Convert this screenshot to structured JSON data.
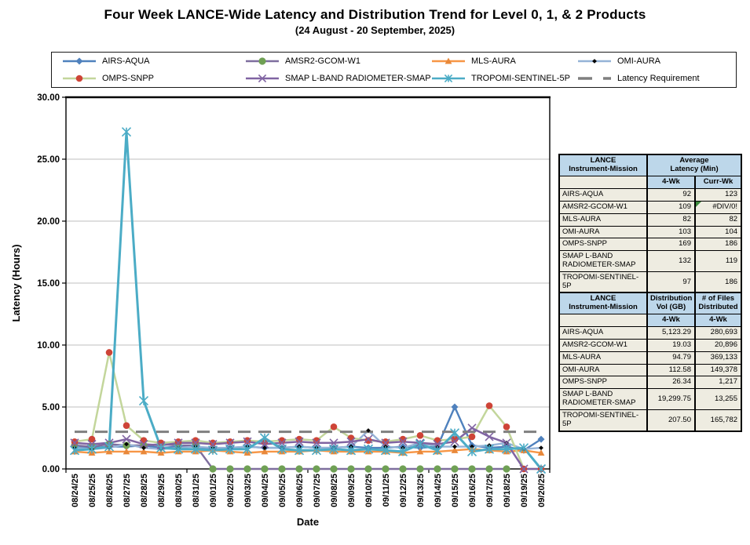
{
  "title": "Four Week LANCE-Wide Latency and Distribution Trend for Level 0, 1, & 2 Products",
  "subtitle": "(24 August   - 20 September,  2025)",
  "chart_data": {
    "type": "line",
    "xlabel": "Date",
    "ylabel": "Latency (Hours)",
    "ylim": [
      0,
      30
    ],
    "ytick_step": 5,
    "ytick_labels": [
      "0.00",
      "5.00",
      "10.00",
      "15.00",
      "20.00",
      "25.00",
      "30.00"
    ],
    "grid": true,
    "legend_position": "top",
    "x": [
      "08/24/25",
      "08/25/25",
      "08/26/25",
      "08/27/25",
      "08/28/25",
      "08/29/25",
      "08/30/25",
      "08/31/25",
      "09/01/25",
      "09/02/25",
      "09/03/25",
      "09/04/25",
      "09/05/25",
      "09/06/25",
      "09/07/25",
      "09/08/25",
      "09/09/25",
      "09/10/25",
      "09/11/25",
      "09/12/25",
      "09/13/25",
      "09/14/25",
      "09/15/25",
      "09/16/25",
      "09/17/25",
      "09/18/25",
      "09/19/25",
      "09/20/25"
    ],
    "series": [
      {
        "name": "AIRS-AQUA",
        "color": "#4F81BD",
        "marker": "diamond",
        "marker_color": "#4F81BD",
        "marker_size": 4.5,
        "line_width": 2.4,
        "values": [
          1.8,
          1.7,
          1.8,
          1.8,
          1.9,
          1.7,
          1.8,
          1.8,
          1.6,
          1.7,
          1.8,
          1.7,
          1.7,
          1.8,
          1.7,
          1.7,
          1.8,
          1.7,
          1.7,
          1.8,
          1.7,
          1.8,
          5.0,
          1.9,
          1.7,
          1.8,
          1.5,
          2.4
        ]
      },
      {
        "name": "AMSR2-GCOM-W1",
        "color": "#7E6E9E",
        "marker": "circle",
        "marker_color": "#6FA054",
        "marker_size": 4.6,
        "line_width": 2.4,
        "values": [
          1.9,
          1.8,
          2.0,
          1.9,
          1.9,
          2.0,
          1.9,
          1.9,
          0,
          0,
          0,
          0,
          0,
          0,
          0,
          0,
          0,
          0,
          0,
          0,
          0,
          0,
          0,
          0,
          0,
          0,
          null,
          null
        ]
      },
      {
        "name": "MLS-AURA",
        "color": "#F79646",
        "marker": "triangle",
        "marker_color": "#E8883A",
        "marker_size": 4.4,
        "line_width": 2.4,
        "values": [
          1.4,
          1.3,
          1.4,
          1.4,
          1.4,
          1.3,
          1.4,
          1.4,
          1.5,
          1.4,
          1.3,
          1.4,
          1.4,
          1.4,
          1.5,
          1.4,
          1.4,
          1.4,
          1.4,
          1.3,
          1.4,
          1.4,
          1.5,
          1.6,
          1.5,
          1.4,
          1.5,
          1.3
        ]
      },
      {
        "name": "OMI-AURA",
        "color": "#95B3D7",
        "marker": "diamond",
        "marker_color": "#000000",
        "marker_size": 2.9,
        "line_width": 2.4,
        "values": [
          1.7,
          1.6,
          1.7,
          2.0,
          1.7,
          1.6,
          1.7,
          1.8,
          1.7,
          1.7,
          1.8,
          1.7,
          1.7,
          1.8,
          1.7,
          1.7,
          1.8,
          3.1,
          1.8,
          1.7,
          2.1,
          1.8,
          1.8,
          1.8,
          1.9,
          2.1,
          1.6,
          1.7
        ]
      },
      {
        "name": "OMPS-SNPP",
        "color": "#C3D69B",
        "marker": "circle",
        "marker_color": "#CE4437",
        "marker_size": 4.3,
        "line_width": 2.5,
        "values": [
          2.2,
          2.4,
          9.4,
          3.5,
          2.3,
          2.1,
          2.2,
          2.3,
          2.1,
          2.2,
          2.3,
          2.2,
          2.3,
          2.4,
          2.3,
          3.4,
          2.5,
          2.3,
          2.2,
          2.4,
          2.7,
          2.3,
          2.4,
          2.6,
          5.1,
          3.4,
          0.0,
          0.0
        ]
      },
      {
        "name": "SMAP L-BAND RADIOMETER-SMAP",
        "color": "#8064A2",
        "marker": "x",
        "marker_color": "#8064A2",
        "marker_size": 5,
        "line_width": 2.5,
        "values": [
          2.1,
          2.0,
          2.1,
          2.4,
          2.0,
          1.9,
          2.1,
          2.1,
          2.0,
          2.1,
          2.2,
          2.0,
          2.1,
          2.2,
          2.1,
          2.1,
          2.2,
          2.4,
          2.1,
          2.2,
          2.1,
          2.0,
          2.2,
          3.3,
          2.6,
          2.1,
          0.0,
          0.0
        ]
      },
      {
        "name": "TROPOMI-SENTINEL-5P",
        "color": "#4BACC6",
        "marker": "star",
        "marker_color": "#4BACC6",
        "marker_size": 5.5,
        "line_width": 3,
        "values": [
          1.5,
          1.6,
          1.8,
          27.2,
          5.5,
          1.7,
          1.6,
          1.6,
          1.5,
          1.6,
          1.6,
          2.5,
          1.6,
          1.5,
          1.5,
          1.6,
          1.5,
          1.6,
          1.5,
          1.4,
          2.0,
          1.5,
          2.9,
          1.4,
          1.6,
          1.6,
          1.7,
          0.0
        ]
      }
    ],
    "reference_line": {
      "name": "Latency Requirement",
      "value": 3.0,
      "color": "#7F7F7F",
      "style": "dashed",
      "line_width": 3
    }
  },
  "tables": [
    {
      "name_header": "LANCE\nInstrument-Mission",
      "group_header": "Average\nLatency (Min)",
      "subheaders": [
        "4-Wk",
        "Curr-Wk"
      ],
      "rows": [
        {
          "name": "AIRS-AQUA",
          "c1": "92",
          "c2": "123"
        },
        {
          "name": "AMSR2-GCOM-W1",
          "c1": "109",
          "c2": "#DIV/0!"
        },
        {
          "name": "MLS-AURA",
          "c1": "82",
          "c2": "82"
        },
        {
          "name": "OMI-AURA",
          "c1": "103",
          "c2": "104"
        },
        {
          "name": "OMPS-SNPP",
          "c1": "169",
          "c2": "186"
        },
        {
          "name": "SMAP L-BAND RADIOMETER-SMAP",
          "c1": "132",
          "c2": "119"
        },
        {
          "name": "TROPOMI-SENTINEL-5P",
          "c1": "97",
          "c2": "186"
        }
      ]
    },
    {
      "name_header": "LANCE\nInstrument-Mission",
      "col1_header": "Distribution\nVol (GB)",
      "col2_header": "# of Files\nDistributed",
      "subheaders": [
        "4-Wk",
        "4-Wk"
      ],
      "rows": [
        {
          "name": "AIRS-AQUA",
          "c1": "5,123.29",
          "c2": "280,693"
        },
        {
          "name": "AMSR2-GCOM-W1",
          "c1": "19.03",
          "c2": "20,896"
        },
        {
          "name": "MLS-AURA",
          "c1": "94.79",
          "c2": "369,133"
        },
        {
          "name": "OMI-AURA",
          "c1": "112.58",
          "c2": "149,378"
        },
        {
          "name": "OMPS-SNPP",
          "c1": "26.34",
          "c2": "1,217"
        },
        {
          "name": "SMAP L-BAND RADIOMETER-SMAP",
          "c1": "19,299.75",
          "c2": "13,255"
        },
        {
          "name": "TROPOMI-SENTINEL-5P",
          "c1": "207.50",
          "c2": "165,782"
        }
      ]
    }
  ]
}
